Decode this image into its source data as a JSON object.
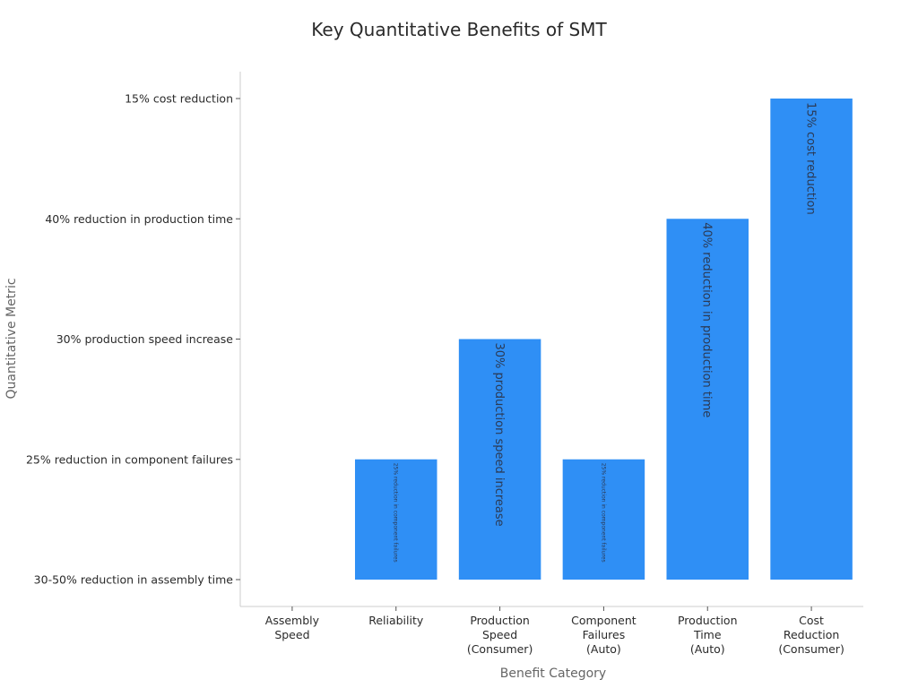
{
  "chart_data": {
    "type": "bar",
    "title": "Key Quantitative Benefits of SMT",
    "xlabel": "Benefit Category",
    "ylabel": "Quantitative Metric",
    "categories": [
      [
        "Assembly",
        "Speed"
      ],
      [
        "Reliability"
      ],
      [
        "Production",
        "Speed",
        "(Consumer)"
      ],
      [
        "Component",
        "Failures",
        "(Auto)"
      ],
      [
        "Production",
        "Time",
        "(Auto)"
      ],
      [
        "Cost",
        "Reduction",
        "(Consumer)"
      ]
    ],
    "y_categories": [
      "30-50% reduction in assembly time",
      "25% reduction in component failures",
      "30% production speed increase",
      "40% reduction in production time",
      "15% cost reduction"
    ],
    "values": [
      "30-50% reduction in assembly time",
      "25% reduction in component failures",
      "30% production speed increase",
      "25% reduction in component failures",
      "40% reduction in production time",
      "15% cost reduction"
    ],
    "data_labels": [
      "",
      "25% reduction in component failures",
      "30% production speed increase",
      "25% reduction in component failures",
      "40% reduction in production time",
      "15% cost reduction"
    ],
    "bar_color": "#2f8ff5",
    "grid": false,
    "legend": "none"
  }
}
